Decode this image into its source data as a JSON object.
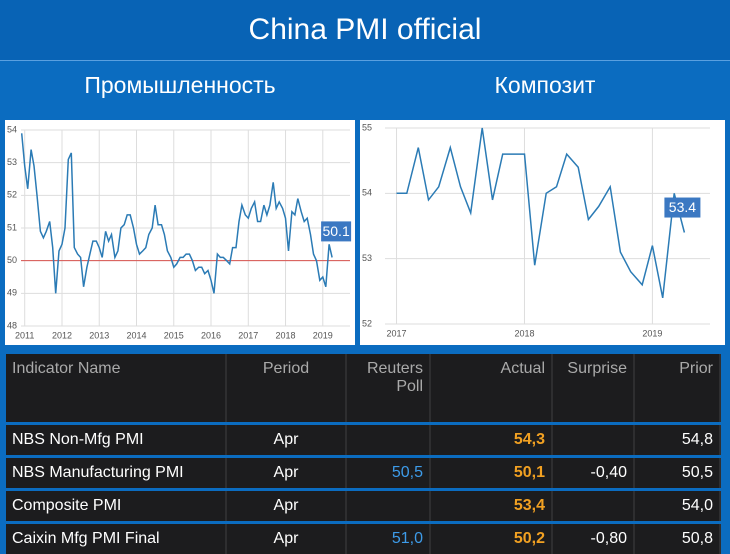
{
  "title": "China PMI official",
  "chart_data": [
    {
      "type": "line",
      "title": "Промышленность",
      "x": [
        2010.92,
        2011.0,
        2011.08,
        2011.17,
        2011.25,
        2011.33,
        2011.42,
        2011.5,
        2011.58,
        2011.67,
        2011.75,
        2011.83,
        2011.92,
        2012.0,
        2012.08,
        2012.17,
        2012.25,
        2012.33,
        2012.42,
        2012.5,
        2012.58,
        2012.67,
        2012.75,
        2012.83,
        2012.92,
        2013.0,
        2013.08,
        2013.17,
        2013.25,
        2013.33,
        2013.42,
        2013.5,
        2013.58,
        2013.67,
        2013.75,
        2013.83,
        2013.92,
        2014.0,
        2014.08,
        2014.17,
        2014.25,
        2014.33,
        2014.42,
        2014.5,
        2014.58,
        2014.67,
        2014.75,
        2014.83,
        2014.92,
        2015.0,
        2015.08,
        2015.17,
        2015.25,
        2015.33,
        2015.42,
        2015.5,
        2015.58,
        2015.67,
        2015.75,
        2015.83,
        2015.92,
        2016.0,
        2016.08,
        2016.17,
        2016.25,
        2016.33,
        2016.42,
        2016.5,
        2016.58,
        2016.67,
        2016.75,
        2016.83,
        2016.92,
        2017.0,
        2017.08,
        2017.17,
        2017.25,
        2017.33,
        2017.42,
        2017.5,
        2017.58,
        2017.67,
        2017.75,
        2017.83,
        2017.92,
        2018.0,
        2018.08,
        2018.17,
        2018.25,
        2018.33,
        2018.42,
        2018.5,
        2018.58,
        2018.67,
        2018.75,
        2018.83,
        2018.92,
        2019.0,
        2019.08,
        2019.17,
        2019.25
      ],
      "values": [
        53.9,
        52.9,
        52.2,
        53.4,
        52.9,
        52.0,
        50.9,
        50.7,
        50.9,
        51.2,
        50.4,
        49.0,
        50.3,
        50.5,
        51.0,
        53.1,
        53.3,
        50.4,
        50.2,
        50.1,
        49.2,
        49.8,
        50.2,
        50.6,
        50.6,
        50.4,
        50.1,
        50.9,
        50.6,
        50.8,
        50.1,
        50.3,
        51.0,
        51.1,
        51.4,
        51.4,
        51.0,
        50.5,
        50.2,
        50.3,
        50.4,
        50.8,
        51.0,
        51.7,
        51.1,
        51.1,
        50.8,
        50.3,
        50.1,
        49.8,
        49.9,
        50.1,
        50.1,
        50.2,
        50.2,
        50.0,
        49.7,
        49.8,
        49.8,
        49.6,
        49.7,
        49.4,
        49.0,
        50.2,
        50.1,
        50.1,
        50.0,
        49.9,
        50.4,
        50.4,
        51.2,
        51.7,
        51.4,
        51.3,
        51.6,
        51.8,
        51.2,
        51.2,
        51.7,
        51.4,
        51.7,
        52.4,
        51.6,
        51.8,
        51.6,
        51.3,
        50.3,
        51.5,
        51.4,
        51.9,
        51.5,
        51.2,
        51.3,
        50.8,
        50.2,
        50.0,
        49.4,
        49.5,
        49.2,
        50.5,
        50.1
      ],
      "color": "#2b7bb5",
      "xlim": [
        2010.9,
        2019.73
      ],
      "xticks": [
        2011,
        2012,
        2013,
        2014,
        2015,
        2016,
        2017,
        2018,
        2019
      ],
      "ylim": [
        48,
        54
      ],
      "yticks": [
        48,
        49,
        50,
        51,
        52,
        53,
        54
      ],
      "hline": {
        "value": 50,
        "color": "#d9534f"
      },
      "grid": true
    },
    {
      "type": "line",
      "title": "Композит",
      "x": [
        2017.0,
        2017.08,
        2017.17,
        2017.25,
        2017.33,
        2017.42,
        2017.5,
        2017.58,
        2017.67,
        2017.75,
        2017.83,
        2017.92,
        2018.0,
        2018.08,
        2018.17,
        2018.25,
        2018.33,
        2018.42,
        2018.5,
        2018.58,
        2018.67,
        2018.75,
        2018.83,
        2018.92,
        2019.0,
        2019.08,
        2019.17,
        2019.25
      ],
      "values": [
        54.0,
        54.0,
        54.7,
        53.9,
        54.1,
        54.7,
        54.1,
        53.7,
        55.0,
        53.9,
        54.6,
        54.6,
        54.6,
        52.9,
        54.0,
        54.1,
        54.6,
        54.4,
        53.6,
        53.8,
        54.1,
        53.1,
        52.8,
        52.6,
        53.2,
        52.4,
        54.0,
        53.4
      ],
      "color": "#2b7bb5",
      "xlim": [
        2016.91,
        2019.45
      ],
      "xticks": [
        2017,
        2018,
        2019
      ],
      "ylim": [
        52,
        55
      ],
      "yticks": [
        52,
        53,
        54,
        55
      ],
      "grid": true
    }
  ],
  "table": {
    "columns": [
      "Indicator Name",
      "Period",
      "Reuters Poll",
      "Actual",
      "Surprise",
      "Prior"
    ],
    "rows": [
      [
        "NBS Non-Mfg PMI",
        "Apr",
        null,
        "54,3",
        null,
        "54,8"
      ],
      [
        "NBS Manufacturing PMI",
        "Apr",
        "50,5",
        "50,1",
        "-0,40",
        "50,5"
      ],
      [
        "Composite PMI",
        "Apr",
        null,
        "53,4",
        null,
        "54,0"
      ],
      [
        "Caixin Mfg PMI Final",
        "Apr",
        "51,0",
        "50,2",
        "-0,80",
        "50,8"
      ]
    ]
  }
}
